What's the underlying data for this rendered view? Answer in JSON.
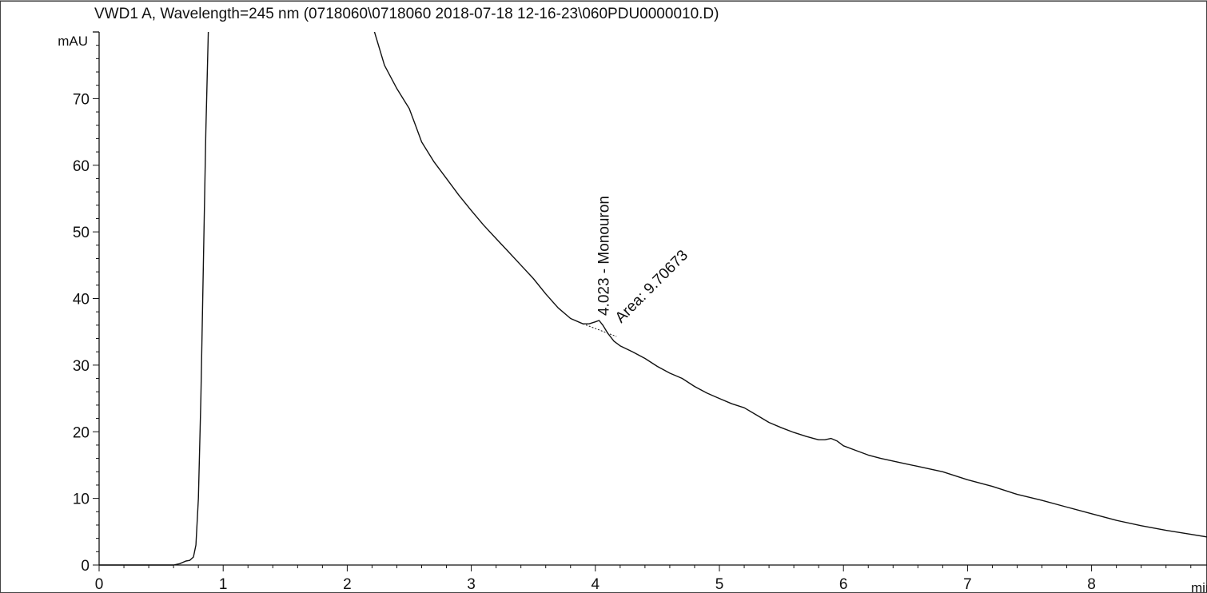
{
  "chart_data": {
    "type": "line",
    "title": "VWD1 A, Wavelength=245 nm (0718060\\0718060 2018-07-18 12-16-23\\060PDU0000010.D)",
    "ylabel": "mAU",
    "xlabel": "min",
    "xlim": [
      0,
      9.1
    ],
    "ylim": [
      0,
      80
    ],
    "x_ticks": [
      0,
      1,
      2,
      3,
      4,
      5,
      6,
      7,
      8
    ],
    "y_ticks": [
      0,
      10,
      20,
      30,
      40,
      50,
      60,
      70
    ],
    "x_tick_labels": [
      "0",
      "1",
      "2",
      "3",
      "4",
      "5",
      "6",
      "7",
      "8"
    ],
    "y_tick_labels": [
      "0",
      "10",
      "20",
      "30",
      "40",
      "50",
      "60",
      "70"
    ],
    "grid": false,
    "line_color": "#111111",
    "series": [
      {
        "x": [
          0.0,
          0.6,
          0.65,
          0.7,
          0.73,
          0.76,
          0.78,
          0.8,
          0.82,
          0.84,
          0.86,
          0.88,
          0.9,
          0.92,
          2.22,
          2.3,
          2.4,
          2.5,
          2.55,
          2.6,
          2.7,
          2.8,
          2.9,
          3.0,
          3.1,
          3.2,
          3.3,
          3.4,
          3.5,
          3.6,
          3.7,
          3.8,
          3.9,
          3.95,
          4.0,
          4.03,
          4.06,
          4.1,
          4.15,
          4.2,
          4.3,
          4.4,
          4.5,
          4.6,
          4.7,
          4.8,
          4.9,
          5.0,
          5.1,
          5.2,
          5.3,
          5.4,
          5.5,
          5.6,
          5.7,
          5.8,
          5.85,
          5.9,
          5.95,
          6.0,
          6.1,
          6.2,
          6.3,
          6.4,
          6.5,
          6.6,
          6.7,
          6.8,
          6.9,
          7.0,
          7.2,
          7.4,
          7.6,
          7.8,
          8.0,
          8.2,
          8.4,
          8.6,
          8.8,
          9.0,
          9.1
        ],
        "y": [
          0.0,
          0.0,
          0.2,
          0.6,
          0.7,
          1.2,
          3.0,
          10.0,
          25.0,
          45.0,
          65.0,
          80.0,
          95.0,
          105.0,
          80.0,
          75.0,
          71.5,
          68.5,
          66.0,
          63.5,
          60.5,
          58.0,
          55.5,
          53.2,
          51.0,
          49.0,
          47.0,
          45.0,
          43.0,
          40.7,
          38.6,
          37.0,
          36.2,
          36.2,
          36.5,
          36.7,
          36.0,
          34.8,
          33.6,
          32.9,
          32.0,
          31.0,
          29.8,
          28.8,
          28.0,
          26.8,
          25.8,
          25.0,
          24.2,
          23.6,
          22.5,
          21.4,
          20.6,
          19.9,
          19.3,
          18.8,
          18.8,
          19.0,
          18.6,
          17.9,
          17.2,
          16.5,
          16.0,
          15.6,
          15.2,
          14.8,
          14.4,
          14.0,
          13.4,
          12.8,
          11.8,
          10.6,
          9.7,
          8.7,
          7.7,
          6.7,
          5.9,
          5.2,
          4.6,
          4.0,
          3.7
        ]
      }
    ],
    "annotations": [
      {
        "x": 4.023,
        "y": 36.7,
        "text": "4.023 - Monouron"
      },
      {
        "x": 4.06,
        "y": 36.0,
        "text": "Area: 9.70673"
      }
    ],
    "baseline": {
      "x": [
        3.9,
        4.17
      ],
      "y": [
        36.2,
        34.3
      ]
    }
  }
}
